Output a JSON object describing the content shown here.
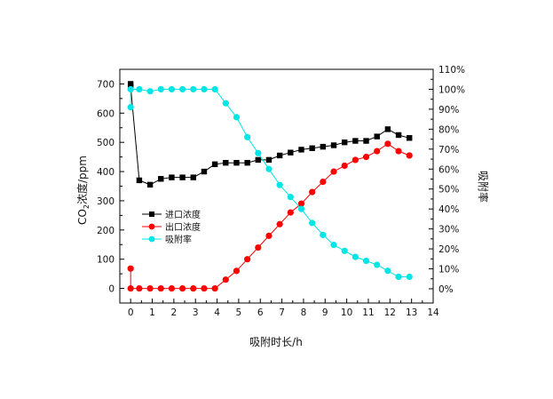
{
  "chart_data": {
    "type": "line",
    "xlabel": "吸附时长/h",
    "ylabel_left_main": "CO",
    "ylabel_left_sub": "2",
    "ylabel_left_rest": "浓度/ppm",
    "ylabel_right": "吸附率",
    "xlim": [
      -0.5,
      14
    ],
    "ylim_left": [
      -50,
      750
    ],
    "ylim_right": [
      -0.0714,
      1.1
    ],
    "x_ticks": [
      0,
      1,
      2,
      3,
      4,
      5,
      6,
      7,
      8,
      9,
      10,
      11,
      12,
      13,
      14
    ],
    "y_ticks_left": [
      0,
      100,
      200,
      300,
      400,
      500,
      600,
      700
    ],
    "y_ticks_right": [
      "0%",
      "10%",
      "20%",
      "30%",
      "40%",
      "50%",
      "60%",
      "70%",
      "80%",
      "90%",
      "100%",
      "110%"
    ],
    "legend_position": "center-left",
    "grid": false,
    "series": [
      {
        "name": "进口浓度",
        "axis": "left",
        "color": "#000000",
        "marker": "square",
        "x": [
          0,
          0,
          0.4,
          0.9,
          1.4,
          1.9,
          2.4,
          2.9,
          3.4,
          3.9,
          4.4,
          4.9,
          5.4,
          5.9,
          6.4,
          6.9,
          7.4,
          7.9,
          8.4,
          8.9,
          9.4,
          9.9,
          10.4,
          10.9,
          11.4,
          11.9,
          12.4,
          12.9
        ],
        "y": [
          700,
          690,
          370,
          355,
          375,
          380,
          380,
          380,
          400,
          425,
          430,
          430,
          430,
          440,
          440,
          455,
          465,
          475,
          480,
          485,
          490,
          500,
          505,
          505,
          520,
          545,
          525,
          515
        ]
      },
      {
        "name": "出口浓度",
        "axis": "left",
        "color": "#ff0000",
        "marker": "circle",
        "x": [
          0,
          0,
          0.4,
          0.9,
          1.4,
          1.9,
          2.4,
          2.9,
          3.4,
          3.9,
          4.4,
          4.9,
          5.4,
          5.9,
          6.4,
          6.9,
          7.4,
          7.9,
          8.4,
          8.9,
          9.4,
          9.9,
          10.4,
          10.9,
          11.4,
          11.9,
          12.4,
          12.9
        ],
        "y": [
          68,
          0,
          0,
          0,
          0,
          0,
          0,
          0,
          0,
          0,
          30,
          60,
          100,
          140,
          180,
          220,
          260,
          290,
          330,
          365,
          400,
          420,
          440,
          450,
          470,
          495,
          470,
          455
        ]
      },
      {
        "name": "吸附率",
        "axis": "right",
        "color": "#00e5e5",
        "marker": "circle",
        "x": [
          0,
          0,
          0.4,
          0.9,
          1.4,
          1.9,
          2.4,
          2.9,
          3.4,
          3.9,
          4.4,
          4.9,
          5.4,
          5.9,
          6.4,
          6.9,
          7.4,
          7.9,
          8.4,
          8.9,
          9.4,
          9.9,
          10.4,
          10.9,
          11.4,
          11.9,
          12.4,
          12.9
        ],
        "y": [
          0.91,
          1.0,
          1.0,
          0.99,
          1.0,
          1.0,
          1.0,
          1.0,
          1.0,
          1.0,
          0.93,
          0.86,
          0.76,
          0.68,
          0.6,
          0.52,
          0.46,
          0.4,
          0.33,
          0.27,
          0.22,
          0.19,
          0.16,
          0.14,
          0.12,
          0.09,
          0.06,
          0.06
        ]
      }
    ]
  }
}
